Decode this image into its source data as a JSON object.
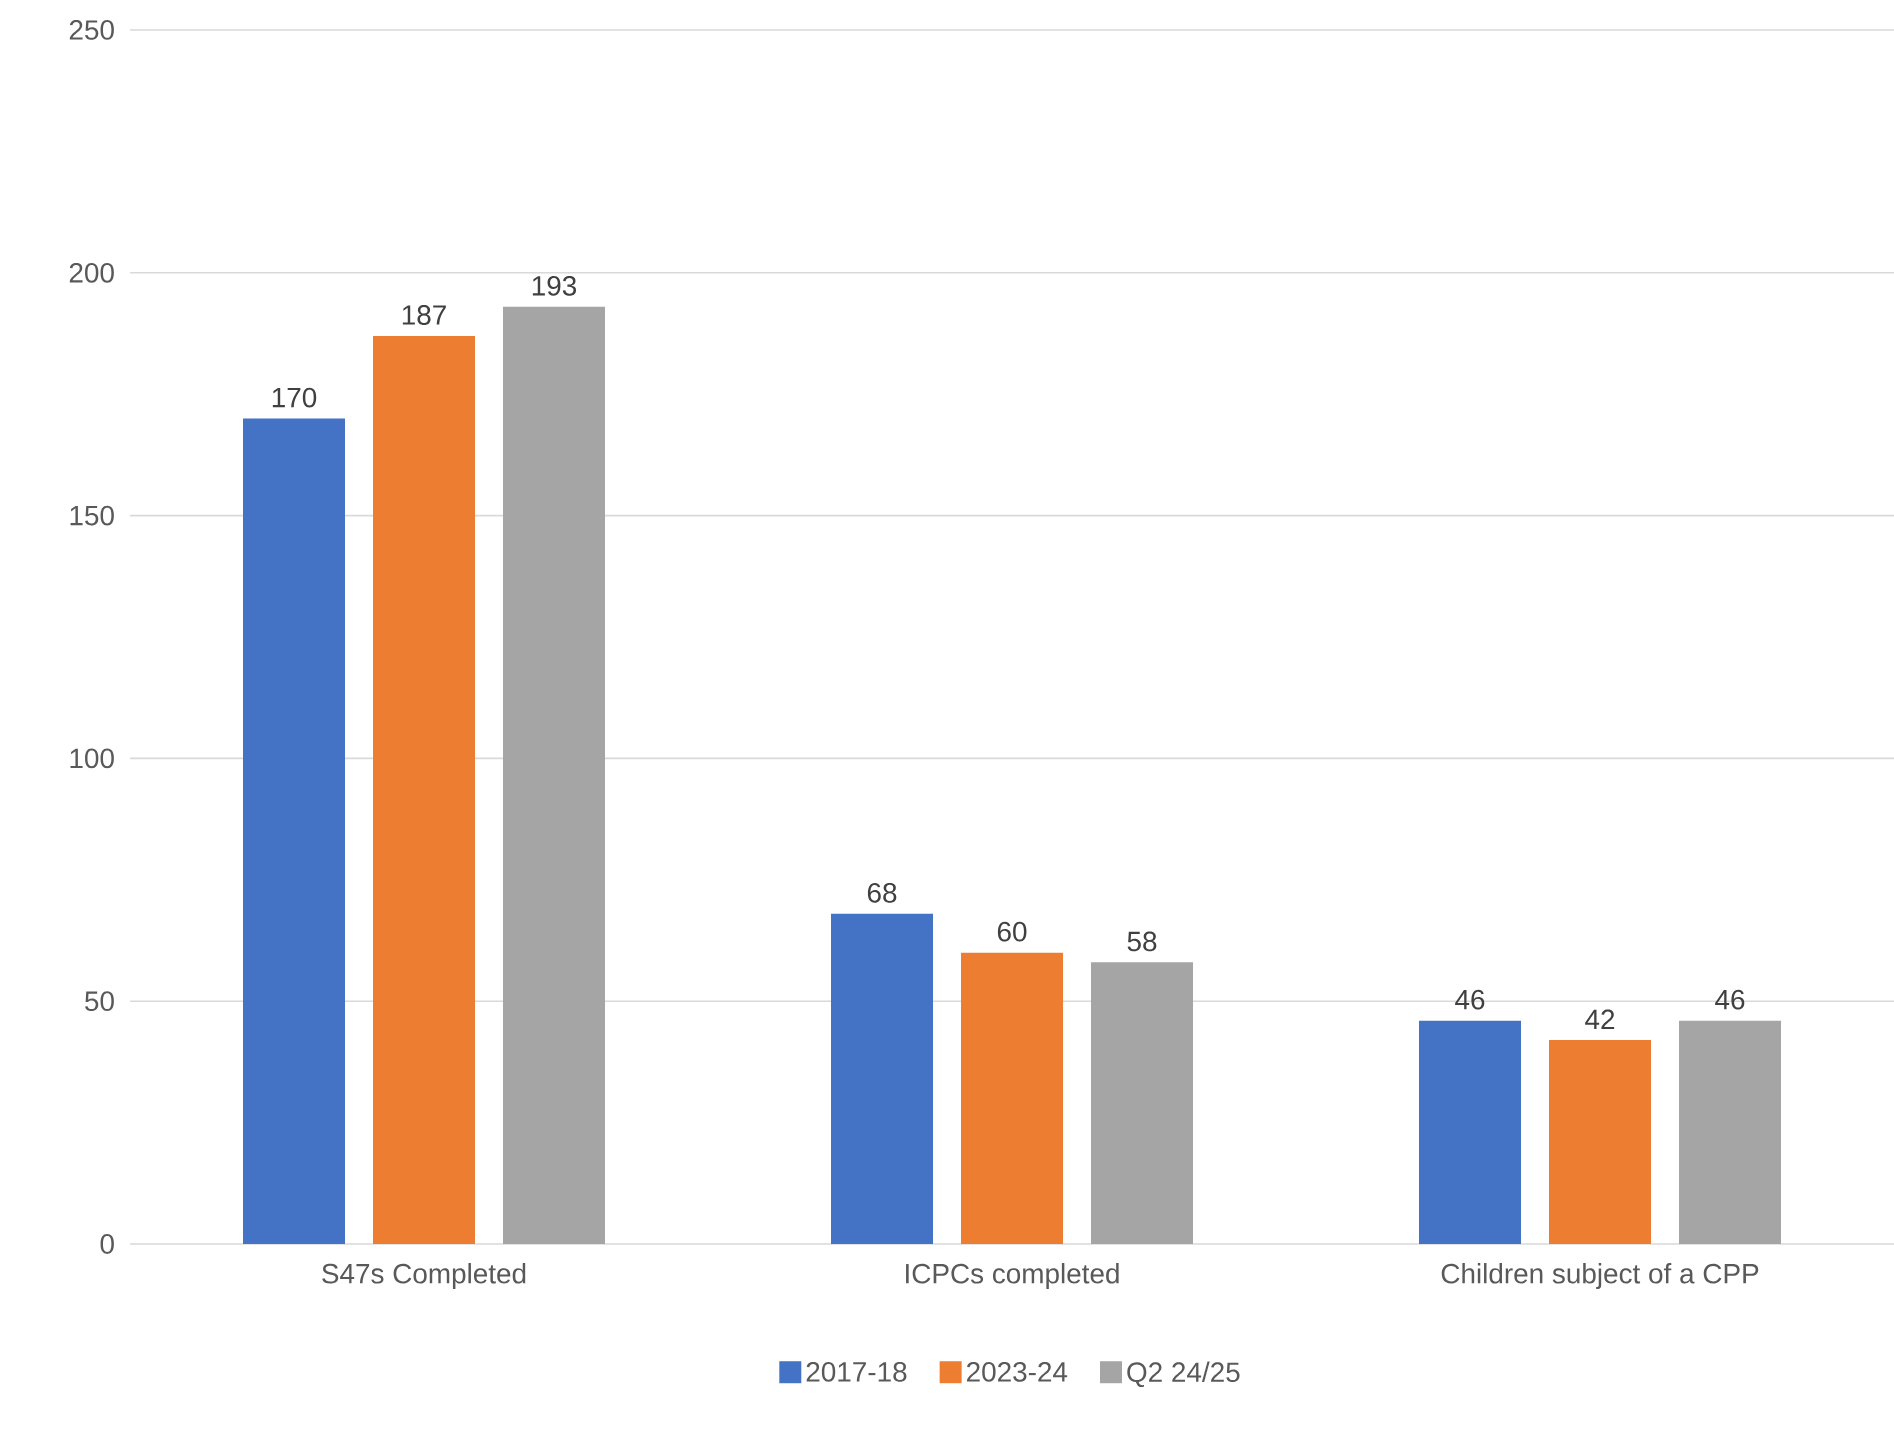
{
  "chart_data": {
    "type": "bar",
    "categories": [
      "S47s Completed",
      "ICPCs completed",
      "Children subject of a CPP"
    ],
    "series": [
      {
        "name": "2017-18",
        "color": "#4472c4",
        "values": [
          170,
          68,
          46
        ]
      },
      {
        "name": "2023-24",
        "color": "#ed7d31",
        "values": [
          187,
          60,
          42
        ]
      },
      {
        "name": "Q2 24/25",
        "color": "#a5a5a5",
        "values": [
          193,
          58,
          46
        ]
      }
    ],
    "ylim": [
      0,
      250
    ],
    "yticks": [
      0,
      50,
      100,
      150,
      200,
      250
    ],
    "grid": "y",
    "legend": "bottom",
    "data_labels": true
  }
}
